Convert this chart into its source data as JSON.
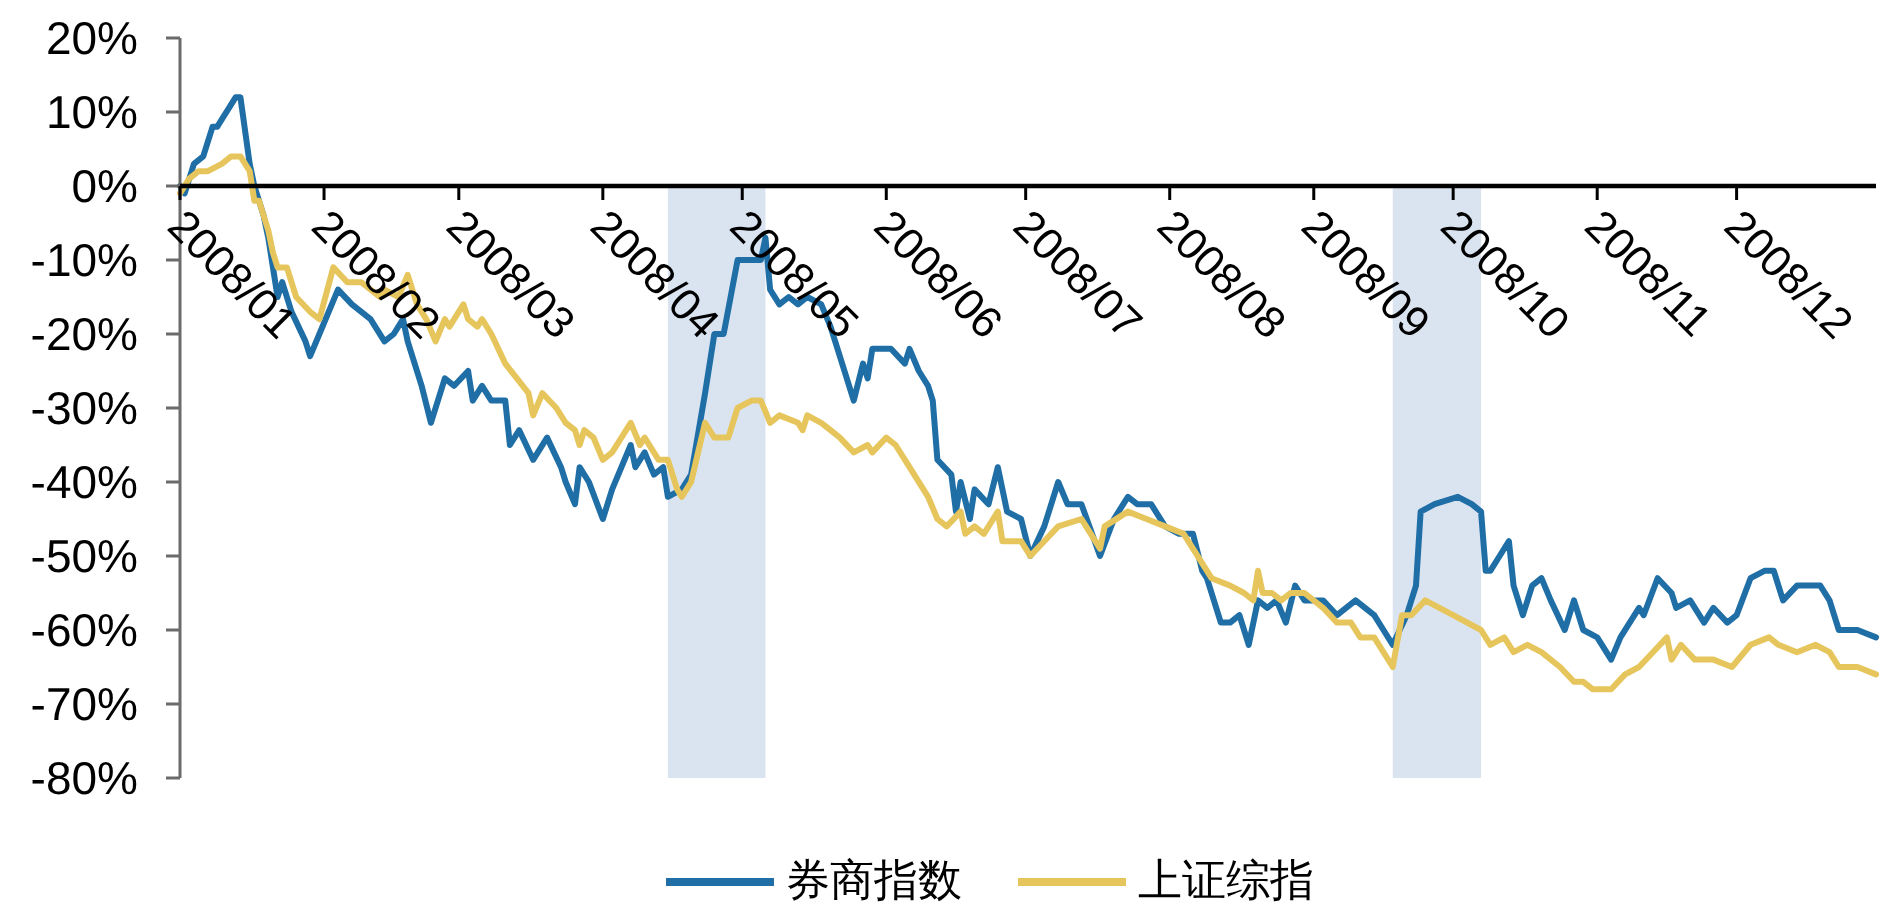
{
  "chart_data": {
    "type": "line",
    "xlim": [
      "2008-01-01",
      "2008-12-31"
    ],
    "xticks": [
      {
        "value": "2008-01-01",
        "label": "2008/01"
      },
      {
        "value": "2008-02-01",
        "label": "2008/02"
      },
      {
        "value": "2008-03-01",
        "label": "2008/03"
      },
      {
        "value": "2008-04-01",
        "label": "2008/04"
      },
      {
        "value": "2008-05-01",
        "label": "2008/05"
      },
      {
        "value": "2008-06-01",
        "label": "2008/06"
      },
      {
        "value": "2008-07-01",
        "label": "2008/07"
      },
      {
        "value": "2008-08-01",
        "label": "2008/08"
      },
      {
        "value": "2008-09-01",
        "label": "2008/09"
      },
      {
        "value": "2008-10-01",
        "label": "2008/10"
      },
      {
        "value": "2008-11-01",
        "label": "2008/11"
      },
      {
        "value": "2008-12-01",
        "label": "2008/12"
      }
    ],
    "ylim": [
      -80,
      20
    ],
    "yticks": [
      {
        "value": -80,
        "label": "-80%"
      },
      {
        "value": -70,
        "label": "-70%"
      },
      {
        "value": -60,
        "label": "-60%"
      },
      {
        "value": -50,
        "label": "-50%"
      },
      {
        "value": -40,
        "label": "-40%"
      },
      {
        "value": -30,
        "label": "-30%"
      },
      {
        "value": -20,
        "label": "-20%"
      },
      {
        "value": -10,
        "label": "-10%"
      },
      {
        "value": 0,
        "label": "0%"
      },
      {
        "value": 10,
        "label": "10%"
      },
      {
        "value": 20,
        "label": "20%"
      }
    ],
    "legend": "bottom",
    "bands": [
      {
        "axis": "x",
        "from": "2008-04-15",
        "to": "2008-05-06",
        "color": "#b5c9e3"
      },
      {
        "axis": "x",
        "from": "2008-09-18",
        "to": "2008-10-07",
        "color": "#b5c9e3"
      }
    ],
    "series": [
      {
        "name": "券商指数",
        "color": "#1f6ea6",
        "x": [
          "2008-01-01",
          "2008-01-02",
          "2008-01-04",
          "2008-01-06",
          "2008-01-08",
          "2008-01-09",
          "2008-01-10",
          "2008-01-13",
          "2008-01-14",
          "2008-01-16",
          "2008-01-17",
          "2008-01-19",
          "2008-01-20",
          "2008-01-22",
          "2008-01-23",
          "2008-01-25",
          "2008-01-28",
          "2008-01-29",
          "2008-01-31",
          "2008-02-04",
          "2008-02-07",
          "2008-02-11",
          "2008-02-14",
          "2008-02-16",
          "2008-02-18",
          "2008-02-19",
          "2008-02-22",
          "2008-02-24",
          "2008-02-27",
          "2008-02-29",
          "2008-03-03",
          "2008-03-04",
          "2008-03-06",
          "2008-03-08",
          "2008-03-11",
          "2008-03-12",
          "2008-03-14",
          "2008-03-17",
          "2008-03-20",
          "2008-03-23",
          "2008-03-24",
          "2008-03-26",
          "2008-03-27",
          "2008-03-29",
          "2008-04-01",
          "2008-04-03",
          "2008-04-07",
          "2008-04-08",
          "2008-04-10",
          "2008-04-12",
          "2008-04-14",
          "2008-04-15",
          "2008-04-18",
          "2008-04-20",
          "2008-04-23",
          "2008-04-25",
          "2008-04-27",
          "2008-04-30",
          "2008-05-01",
          "2008-05-05",
          "2008-05-06",
          "2008-05-07",
          "2008-05-09",
          "2008-05-11",
          "2008-05-13",
          "2008-05-15",
          "2008-05-18",
          "2008-05-20",
          "2008-05-22",
          "2008-05-25",
          "2008-05-27",
          "2008-05-28",
          "2008-05-29",
          "2008-06-02",
          "2008-06-05",
          "2008-06-06",
          "2008-06-08",
          "2008-06-10",
          "2008-06-11",
          "2008-06-12",
          "2008-06-15",
          "2008-06-16",
          "2008-06-17",
          "2008-06-19",
          "2008-06-20",
          "2008-06-23",
          "2008-06-25",
          "2008-06-27",
          "2008-06-30",
          "2008-07-02",
          "2008-07-05",
          "2008-07-08",
          "2008-07-10",
          "2008-07-13",
          "2008-07-17",
          "2008-07-20",
          "2008-07-23",
          "2008-07-25",
          "2008-07-28",
          "2008-07-31",
          "2008-08-03",
          "2008-08-06",
          "2008-08-08",
          "2008-08-09",
          "2008-08-12",
          "2008-08-14",
          "2008-08-16",
          "2008-08-18",
          "2008-08-20",
          "2008-08-22",
          "2008-08-24",
          "2008-08-26",
          "2008-08-28",
          "2008-08-30",
          "2008-09-03",
          "2008-09-06",
          "2008-09-10",
          "2008-09-14",
          "2008-09-16",
          "2008-09-18",
          "2008-09-21",
          "2008-09-23",
          "2008-09-24",
          "2008-09-27",
          "2008-10-02",
          "2008-10-05",
          "2008-10-07",
          "2008-10-08",
          "2008-10-09",
          "2008-10-11",
          "2008-10-13",
          "2008-10-14",
          "2008-10-16",
          "2008-10-18",
          "2008-10-20",
          "2008-10-22",
          "2008-10-25",
          "2008-10-27",
          "2008-10-29",
          "2008-11-01",
          "2008-11-04",
          "2008-11-06",
          "2008-11-10",
          "2008-11-11",
          "2008-11-14",
          "2008-11-17",
          "2008-11-18",
          "2008-11-21",
          "2008-11-24",
          "2008-11-26",
          "2008-11-29",
          "2008-12-01",
          "2008-12-04",
          "2008-12-07",
          "2008-12-09",
          "2008-12-11",
          "2008-12-14",
          "2008-12-19",
          "2008-12-21",
          "2008-12-23",
          "2008-12-27",
          "2008-12-31"
        ],
        "values": [
          0,
          -1,
          3,
          4,
          8,
          8,
          9,
          12,
          12,
          3,
          0,
          -4,
          -7,
          -15,
          -13,
          -17,
          -21,
          -23,
          -20,
          -14,
          -16,
          -18,
          -21,
          -20,
          -18,
          -21,
          -27,
          -32,
          -26,
          -27,
          -25,
          -29,
          -27,
          -29,
          -29,
          -35,
          -33,
          -37,
          -34,
          -38,
          -40,
          -43,
          -38,
          -40,
          -45,
          -41,
          -35,
          -38,
          -36,
          -39,
          -38,
          -42,
          -41,
          -39,
          -28,
          -20,
          -20,
          -10,
          -10,
          -10,
          -7,
          -14,
          -16,
          -15,
          -16,
          -15,
          -16,
          -19,
          -23,
          -29,
          -24,
          -26,
          -22,
          -22,
          -24,
          -22,
          -25,
          -27,
          -29,
          -37,
          -39,
          -44,
          -40,
          -45,
          -41,
          -43,
          -38,
          -44,
          -45,
          -50,
          -46,
          -40,
          -43,
          -43,
          -50,
          -45,
          -42,
          -43,
          -43,
          -46,
          -47,
          -47,
          -52,
          -53,
          -59,
          -59,
          -58,
          -62,
          -56,
          -57,
          -56,
          -59,
          -54,
          -56,
          -56,
          -58,
          -56,
          -58,
          -60,
          -62,
          -58,
          -54,
          -44,
          -43,
          -42,
          -43,
          -44,
          -52,
          -52,
          -50,
          -48,
          -54,
          -58,
          -54,
          -53,
          -56,
          -60,
          -56,
          -60,
          -61,
          -64,
          -61,
          -57,
          -58,
          -53,
          -55,
          -57,
          -56,
          -59,
          -57,
          -59,
          -58,
          -53,
          -52,
          -52,
          -56,
          -54,
          -54,
          -56,
          -60,
          -60,
          -61
        ]
      },
      {
        "name": "上证综指",
        "color": "#e6c65c",
        "x": [
          "2008-01-01",
          "2008-01-03",
          "2008-01-05",
          "2008-01-07",
          "2008-01-10",
          "2008-01-12",
          "2008-01-14",
          "2008-01-16",
          "2008-01-17",
          "2008-01-18",
          "2008-01-20",
          "2008-01-21",
          "2008-01-22",
          "2008-01-24",
          "2008-01-26",
          "2008-01-29",
          "2008-01-31",
          "2008-02-03",
          "2008-02-06",
          "2008-02-09",
          "2008-02-13",
          "2008-02-14",
          "2008-02-17",
          "2008-02-19",
          "2008-02-21",
          "2008-02-23",
          "2008-02-25",
          "2008-02-27",
          "2008-02-28",
          "2008-03-02",
          "2008-03-03",
          "2008-03-05",
          "2008-03-06",
          "2008-03-08",
          "2008-03-11",
          "2008-03-16",
          "2008-03-17",
          "2008-03-19",
          "2008-03-22",
          "2008-03-24",
          "2008-03-26",
          "2008-03-27",
          "2008-03-28",
          "2008-03-30",
          "2008-04-01",
          "2008-04-03",
          "2008-04-07",
          "2008-04-09",
          "2008-04-10",
          "2008-04-13",
          "2008-04-15",
          "2008-04-17",
          "2008-04-18",
          "2008-04-20",
          "2008-04-23",
          "2008-04-25",
          "2008-04-28",
          "2008-04-30",
          "2008-05-03",
          "2008-05-05",
          "2008-05-07",
          "2008-05-09",
          "2008-05-13",
          "2008-05-14",
          "2008-05-15",
          "2008-05-18",
          "2008-05-20",
          "2008-05-22",
          "2008-05-25",
          "2008-05-28",
          "2008-05-29",
          "2008-06-01",
          "2008-06-03",
          "2008-06-06",
          "2008-06-10",
          "2008-06-12",
          "2008-06-14",
          "2008-06-17",
          "2008-06-18",
          "2008-06-20",
          "2008-06-22",
          "2008-06-25",
          "2008-06-26",
          "2008-06-30",
          "2008-07-02",
          "2008-07-05",
          "2008-07-08",
          "2008-07-13",
          "2008-07-14",
          "2008-07-17",
          "2008-07-18",
          "2008-07-23",
          "2008-07-27",
          "2008-07-31",
          "2008-08-04",
          "2008-08-08",
          "2008-08-10",
          "2008-08-14",
          "2008-08-17",
          "2008-08-19",
          "2008-08-20",
          "2008-08-21",
          "2008-08-23",
          "2008-08-25",
          "2008-08-27",
          "2008-08-30",
          "2008-09-03",
          "2008-09-06",
          "2008-09-09",
          "2008-09-11",
          "2008-09-14",
          "2008-09-18",
          "2008-09-20",
          "2008-09-22",
          "2008-09-25",
          "2008-10-01",
          "2008-10-07",
          "2008-10-09",
          "2008-10-12",
          "2008-10-14",
          "2008-10-17",
          "2008-10-20",
          "2008-10-24",
          "2008-10-27",
          "2008-10-29",
          "2008-10-31",
          "2008-11-04",
          "2008-11-07",
          "2008-11-10",
          "2008-11-13",
          "2008-11-16",
          "2008-11-17",
          "2008-11-19",
          "2008-11-22",
          "2008-11-26",
          "2008-11-30",
          "2008-12-04",
          "2008-12-08",
          "2008-12-10",
          "2008-12-14",
          "2008-12-18",
          "2008-12-21",
          "2008-12-23",
          "2008-12-27",
          "2008-12-31"
        ],
        "values": [
          -1,
          1,
          2,
          2,
          3,
          4,
          4,
          2,
          -2,
          -2,
          -6,
          -9,
          -11,
          -11,
          -15,
          -17,
          -18,
          -11,
          -13,
          -13,
          -15,
          -14,
          -15,
          -12,
          -16,
          -18,
          -21,
          -18,
          -19,
          -16,
          -18,
          -19,
          -18,
          -20,
          -24,
          -28,
          -31,
          -28,
          -30,
          -32,
          -33,
          -35,
          -33,
          -34,
          -37,
          -36,
          -32,
          -35,
          -34,
          -37,
          -37,
          -41,
          -42,
          -40,
          -32,
          -34,
          -34,
          -30,
          -29,
          -29,
          -32,
          -31,
          -32,
          -33,
          -31,
          -32,
          -33,
          -34,
          -36,
          -35,
          -36,
          -34,
          -35,
          -38,
          -42,
          -45,
          -46,
          -44,
          -47,
          -46,
          -47,
          -44,
          -48,
          -48,
          -50,
          -48,
          -46,
          -45,
          -46,
          -49,
          -46,
          -44,
          -45,
          -46,
          -47,
          -51,
          -53,
          -54,
          -55,
          -56,
          -52,
          -55,
          -55,
          -56,
          -55,
          -55,
          -57,
          -59,
          -59,
          -61,
          -61,
          -65,
          -58,
          -58,
          -56,
          -58,
          -60,
          -62,
          -61,
          -63,
          -62,
          -63,
          -65,
          -67,
          -67,
          -68,
          -68,
          -66,
          -65,
          -63,
          -61,
          -64,
          -62,
          -64,
          -64,
          -65,
          -62,
          -61,
          -62,
          -63,
          -62,
          -63,
          -65,
          -65,
          -66
        ]
      }
    ]
  }
}
